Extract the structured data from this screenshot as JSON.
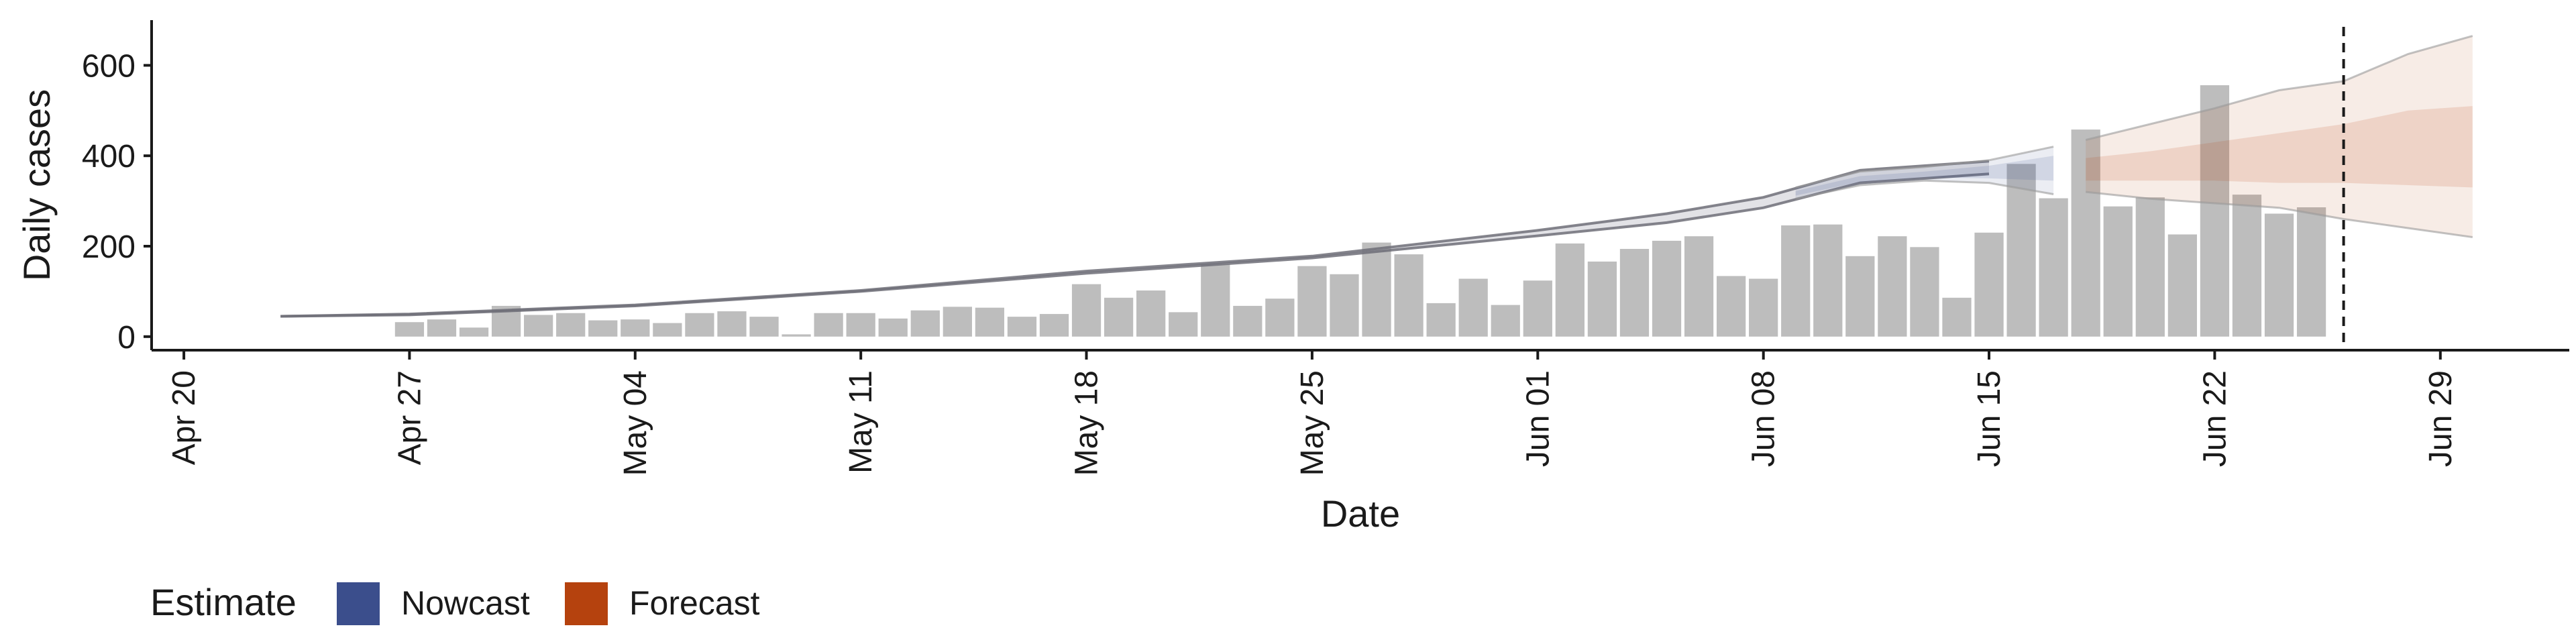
{
  "chart_data": {
    "type": "bar",
    "xlabel": "Date",
    "ylabel": "Daily cases",
    "ylim": [
      -30,
      700
    ],
    "y_ticks": [
      0,
      200,
      400,
      600
    ],
    "x_range": [
      "2020-04-19",
      "2020-07-03"
    ],
    "x_ticks": [
      {
        "date": "2020-04-20",
        "label": "Apr 20"
      },
      {
        "date": "2020-04-27",
        "label": "Apr 27"
      },
      {
        "date": "2020-05-04",
        "label": "May 04"
      },
      {
        "date": "2020-05-11",
        "label": "May 11"
      },
      {
        "date": "2020-05-18",
        "label": "May 18"
      },
      {
        "date": "2020-05-25",
        "label": "May 25"
      },
      {
        "date": "2020-06-01",
        "label": "Jun 01"
      },
      {
        "date": "2020-06-08",
        "label": "Jun 08"
      },
      {
        "date": "2020-06-15",
        "label": "Jun 15"
      },
      {
        "date": "2020-06-22",
        "label": "Jun 22"
      },
      {
        "date": "2020-06-29",
        "label": "Jun 29"
      }
    ],
    "grid": false,
    "legend_position": "bottom-left",
    "vline_date": "2020-06-26",
    "bars": {
      "color": "#bdbdbd",
      "start_date": "2020-04-27",
      "values": [
        32,
        38,
        20,
        68,
        48,
        52,
        36,
        38,
        30,
        52,
        56,
        44,
        5,
        52,
        52,
        40,
        58,
        66,
        64,
        44,
        50,
        116,
        86,
        102,
        54,
        160,
        68,
        84,
        156,
        138,
        208,
        182,
        74,
        128,
        70,
        124,
        206,
        166,
        194,
        212,
        222,
        134,
        128,
        246,
        248,
        178,
        222,
        198,
        86,
        230,
        382,
        306,
        458,
        288,
        308,
        226,
        556,
        314,
        272,
        286
      ]
    },
    "estimate_line": {
      "dates": [
        "2020-04-23",
        "2020-04-27",
        "2020-05-04",
        "2020-05-11",
        "2020-05-18",
        "2020-05-25",
        "2020-06-01",
        "2020-06-05",
        "2020-06-08",
        "2020-06-11",
        "2020-06-15"
      ],
      "upper": [
        45,
        50,
        70,
        102,
        145,
        178,
        235,
        272,
        308,
        368,
        388
      ],
      "lower": [
        45,
        48,
        68,
        100,
        140,
        174,
        223,
        252,
        285,
        340,
        360
      ]
    },
    "legend_title": "Estimate",
    "series": [
      {
        "name": "Nowcast",
        "color": "#3b4e8c",
        "dates": [
          "2020-06-09",
          "2020-06-11",
          "2020-06-13",
          "2020-06-15",
          "2020-06-17"
        ],
        "upper": [
          330,
          365,
          375,
          390,
          420
        ],
        "lower": [
          305,
          335,
          345,
          340,
          315
        ],
        "mid_upper": [
          322,
          355,
          365,
          378,
          400
        ],
        "mid_lower": [
          312,
          342,
          352,
          350,
          345
        ]
      },
      {
        "name": "Forecast",
        "color": "#b5420e",
        "dates": [
          "2020-06-18",
          "2020-06-20",
          "2020-06-22",
          "2020-06-24",
          "2020-06-26",
          "2020-06-28",
          "2020-06-30"
        ],
        "upper": [
          435,
          470,
          505,
          545,
          565,
          625,
          665
        ],
        "lower": [
          320,
          305,
          295,
          285,
          260,
          240,
          220
        ],
        "mid_upper": [
          395,
          410,
          430,
          450,
          470,
          500,
          510
        ],
        "mid_lower": [
          345,
          345,
          345,
          340,
          340,
          335,
          330
        ]
      }
    ]
  }
}
